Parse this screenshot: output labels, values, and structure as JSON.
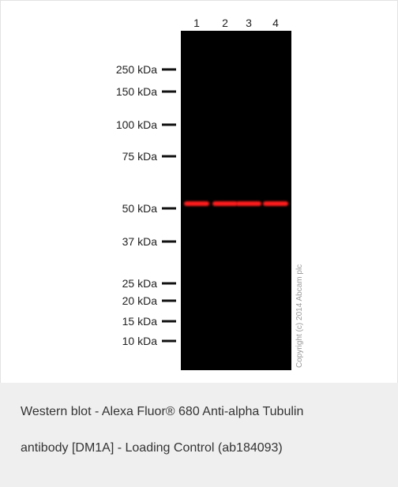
{
  "figure": {
    "lanes": [
      "1",
      "2",
      "3",
      "4"
    ],
    "markers": [
      "250 kDa",
      "150 kDa",
      "100 kDa",
      "75 kDa",
      "50 kDa",
      "37 kDa",
      "25 kDa",
      "20 kDa",
      "15 kDa",
      "10 kDa"
    ],
    "copyright": "Copyright (c) 2014 Abcam plc"
  },
  "caption": {
    "lines": [
      "Western blot - Alexa Fluor® 680 Anti-alpha Tubulin",
      "antibody [DM1A] - Loading Control (ab184093)"
    ]
  }
}
